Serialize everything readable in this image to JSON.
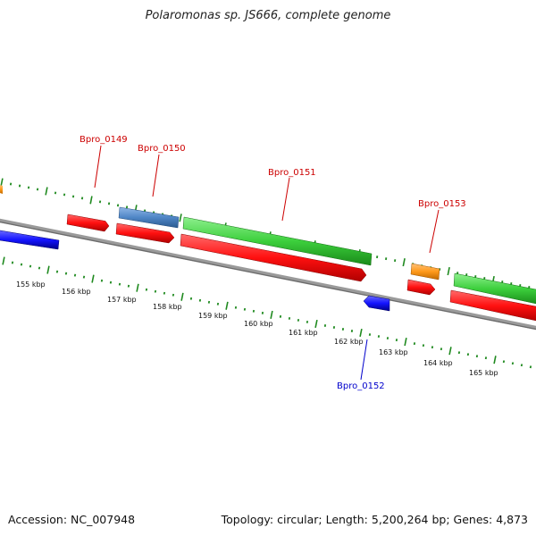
{
  "title": "Polaromonas sp. JS666, complete genome",
  "accession": "Accession: NC_007948",
  "summary": "Topology: circular; Length: 5,200,264 bp; Genes: 4,873",
  "ticks": [
    "155 kbp",
    "156 kbp",
    "157 kbp",
    "158 kbp",
    "159 kbp",
    "160 kbp",
    "161 kbp",
    "162 kbp",
    "163 kbp",
    "164 kbp",
    "165 kbp"
  ],
  "colors": {
    "backbone": "#8c8c8c",
    "tick": "#1f8a1f",
    "red": "#ff1a1a",
    "green": "#3ccf3c",
    "blue": "#1414ff",
    "steel": "#4f86c6",
    "orange": "#ff9a1a",
    "label_red": "#cc0000",
    "label_blue": "#0000cc"
  },
  "genes": [
    {
      "name": "Bpro_0149",
      "label_color": "label_red"
    },
    {
      "name": "Bpro_0150",
      "label_color": "label_red"
    },
    {
      "name": "Bpro_0151",
      "label_color": "label_red"
    },
    {
      "name": "Bpro_0153",
      "label_color": "label_red"
    },
    {
      "name": "Bpro_0152",
      "label_color": "label_blue"
    }
  ]
}
